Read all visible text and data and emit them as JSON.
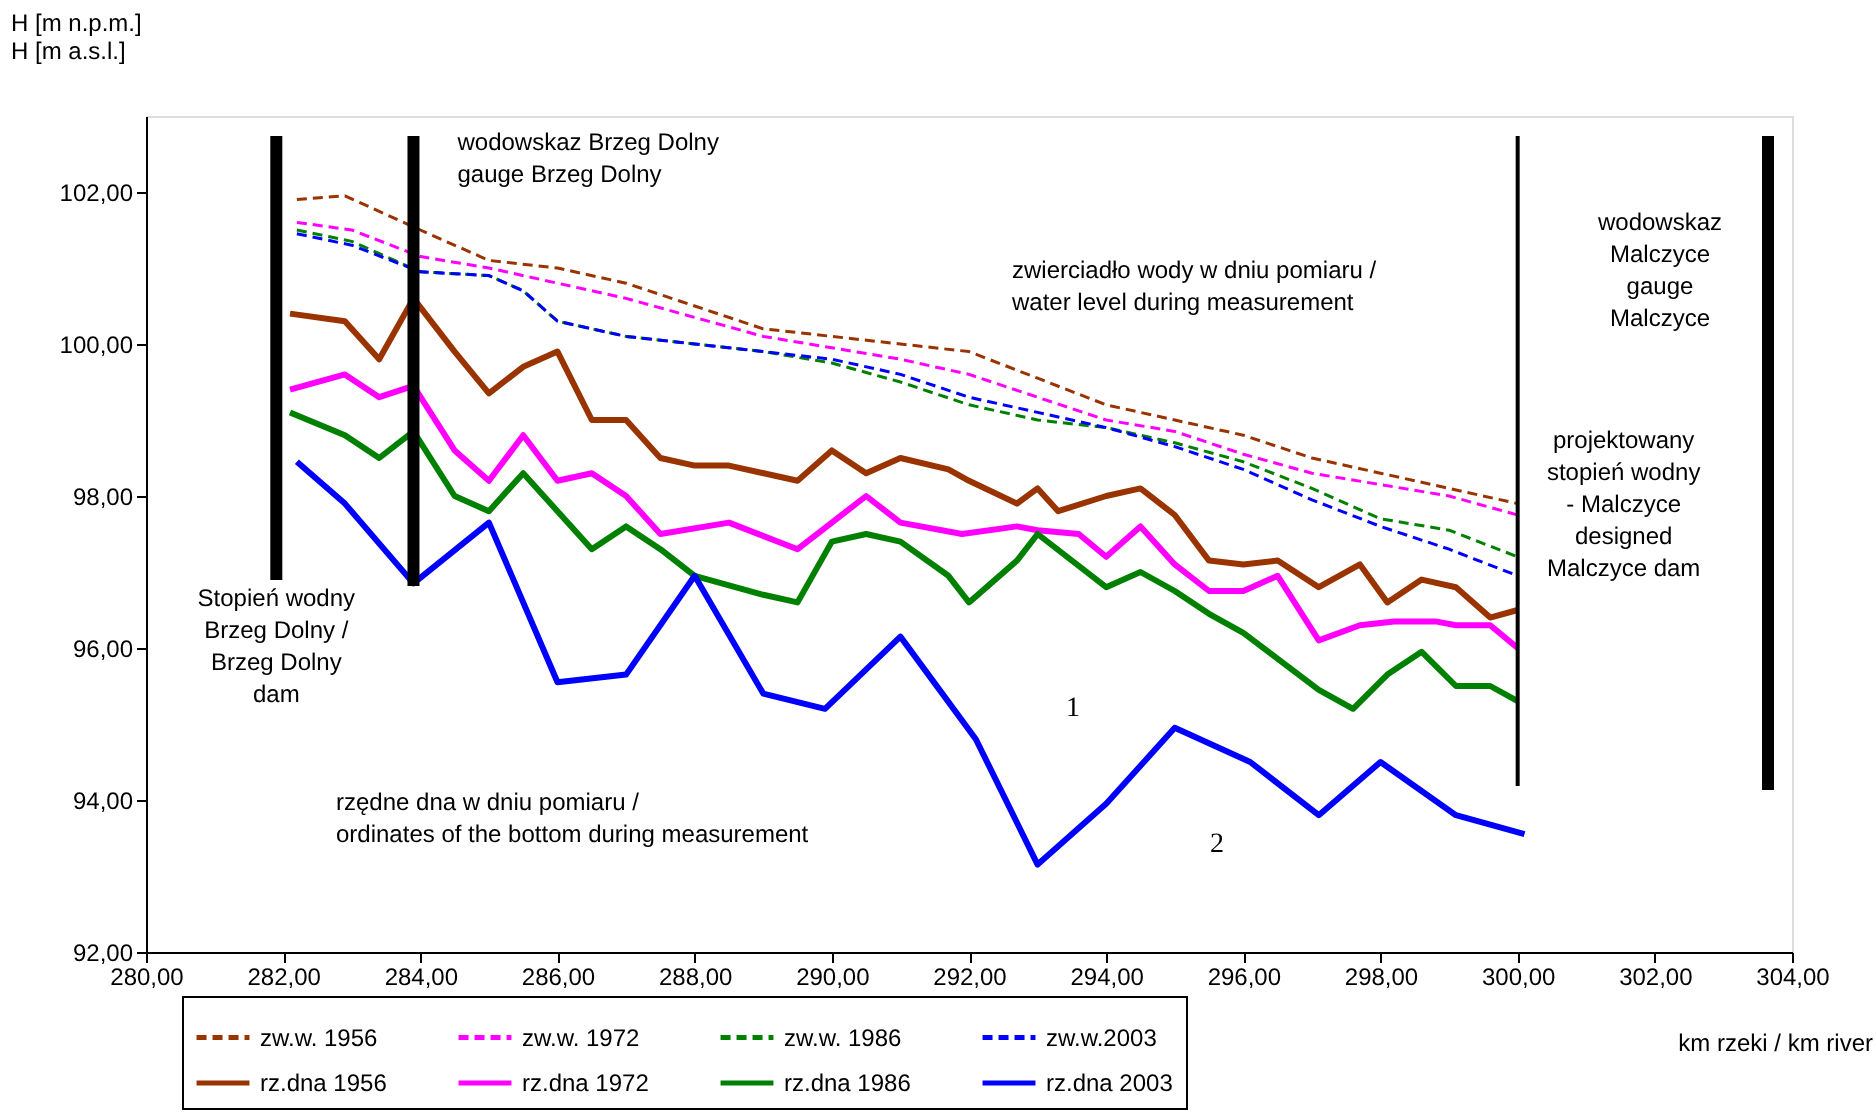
{
  "chart_data": {
    "type": "line",
    "xlabel": "km rzeki / km river",
    "ylabel": "H [m n.p.m.]\nH [m a.s.l.]",
    "xlim": [
      280,
      304
    ],
    "xticks": [
      {
        "value": 280,
        "label": "280,00"
      },
      {
        "value": 282,
        "label": "282,00"
      },
      {
        "value": 284,
        "label": "284,00"
      },
      {
        "value": 286,
        "label": "286,00"
      },
      {
        "value": 288,
        "label": "288,00"
      },
      {
        "value": 290,
        "label": "290,00"
      },
      {
        "value": 292,
        "label": "292,00"
      },
      {
        "value": 294,
        "label": "294,00"
      },
      {
        "value": 296,
        "label": "296,00"
      },
      {
        "value": 298,
        "label": "298,00"
      },
      {
        "value": 300,
        "label": "300,00"
      },
      {
        "value": 302,
        "label": "302,00"
      },
      {
        "value": 304,
        "label": "304,00"
      }
    ],
    "ylim": [
      92,
      103
    ],
    "yticks": [
      {
        "value": 92,
        "label": "92,00"
      },
      {
        "value": 94,
        "label": "94,00"
      },
      {
        "value": 96,
        "label": "96,00"
      },
      {
        "value": 98,
        "label": "98,00"
      },
      {
        "value": 100,
        "label": "100,00"
      },
      {
        "value": 102,
        "label": "102,00"
      }
    ],
    "grid": false,
    "legend": "bottom",
    "series": [
      {
        "name": "zw.w. 1956",
        "color": "#993300",
        "line_style": "dashed",
        "x": [
          282.2,
          282.9,
          284,
          285,
          286,
          287,
          288,
          289,
          290,
          291,
          292,
          293,
          294,
          295,
          296,
          297,
          298,
          299,
          300
        ],
        "values": [
          101.9,
          101.95,
          101.5,
          101.1,
          101.0,
          100.8,
          100.5,
          100.2,
          100.1,
          100.0,
          99.9,
          99.55,
          99.2,
          99.0,
          98.8,
          98.5,
          98.3,
          98.1,
          97.9
        ]
      },
      {
        "name": "zw.w. 1972",
        "color": "#ff00ff",
        "line_style": "dashed",
        "x": [
          282.2,
          283,
          284,
          285,
          286,
          287,
          288,
          289,
          290,
          291,
          292,
          293,
          294,
          295,
          296,
          297,
          298,
          299,
          300
        ],
        "values": [
          101.6,
          101.5,
          101.15,
          101.0,
          100.8,
          100.6,
          100.35,
          100.1,
          99.95,
          99.8,
          99.6,
          99.3,
          99.0,
          98.85,
          98.55,
          98.3,
          98.15,
          98.0,
          97.75
        ]
      },
      {
        "name": "zw.w. 1986",
        "color": "#008000",
        "line_style": "dashed",
        "x": [
          282.2,
          283,
          284,
          285,
          285.5,
          286,
          287,
          288,
          289,
          290,
          291,
          292,
          293,
          294,
          295,
          296,
          297,
          298,
          299,
          300
        ],
        "values": [
          101.5,
          101.35,
          100.95,
          100.9,
          100.7,
          100.3,
          100.1,
          100.0,
          99.9,
          99.75,
          99.5,
          99.2,
          99.0,
          98.9,
          98.7,
          98.45,
          98.1,
          97.7,
          97.55,
          97.2
        ]
      },
      {
        "name": "zw.w.2003",
        "color": "#0000ff",
        "line_style": "dashed",
        "x": [
          282.2,
          283,
          284,
          285,
          285.5,
          286,
          287,
          288,
          289,
          290,
          291,
          292,
          293,
          294,
          295,
          296,
          297,
          298,
          299,
          300
        ],
        "values": [
          101.45,
          101.3,
          100.95,
          100.9,
          100.7,
          100.3,
          100.1,
          100.0,
          99.9,
          99.8,
          99.6,
          99.3,
          99.1,
          98.9,
          98.65,
          98.35,
          97.95,
          97.6,
          97.3,
          96.95
        ]
      },
      {
        "name": "rz.dna 1956",
        "color": "#993300",
        "line_style": "solid",
        "x": [
          282.1,
          282.9,
          283.4,
          283.9,
          284.5,
          285,
          285.5,
          286,
          286.5,
          287,
          287.5,
          288,
          288.5,
          289.5,
          290,
          290.5,
          291,
          291.7,
          292,
          292.7,
          293,
          293.3,
          294,
          294.5,
          295,
          295.5,
          296,
          296.5,
          297.1,
          297.7,
          298.1,
          298.6,
          299.1,
          299.6,
          300
        ],
        "values": [
          100.4,
          100.3,
          99.8,
          100.6,
          99.9,
          99.35,
          99.7,
          99.9,
          99.0,
          99.0,
          98.5,
          98.4,
          98.4,
          98.2,
          98.6,
          98.3,
          98.5,
          98.35,
          98.2,
          97.9,
          98.1,
          97.8,
          98.0,
          98.1,
          97.75,
          97.15,
          97.1,
          97.15,
          96.8,
          97.1,
          96.6,
          96.9,
          96.8,
          96.4,
          96.5
        ]
      },
      {
        "name": "rz.dna 1972",
        "color": "#ff00ff",
        "line_style": "solid",
        "x": [
          282.1,
          282.9,
          283.4,
          283.9,
          284.5,
          285,
          285.5,
          286,
          286.5,
          287,
          287.5,
          288.5,
          289.5,
          290,
          290.5,
          291,
          291.9,
          292.7,
          293,
          293.6,
          294,
          294.5,
          295,
          295.5,
          296,
          296.5,
          297.1,
          297.7,
          298.2,
          298.8,
          299.1,
          299.6,
          300
        ],
        "values": [
          99.4,
          99.6,
          99.3,
          99.45,
          98.6,
          98.2,
          98.8,
          98.2,
          98.3,
          98.0,
          97.5,
          97.65,
          97.3,
          97.65,
          98.0,
          97.65,
          97.5,
          97.6,
          97.55,
          97.5,
          97.2,
          97.6,
          97.1,
          96.75,
          96.75,
          96.95,
          96.1,
          96.3,
          96.35,
          96.35,
          96.3,
          96.3,
          96.0
        ]
      },
      {
        "name": "rz.dna 1986",
        "color": "#008000",
        "line_style": "solid",
        "x": [
          282.1,
          282.9,
          283.4,
          283.9,
          284.5,
          285,
          285.5,
          286,
          286.5,
          287,
          287.5,
          288,
          289,
          289.5,
          290,
          290.5,
          291,
          291.7,
          292,
          292.7,
          293,
          294,
          294.5,
          295,
          295.5,
          296,
          297.1,
          297.6,
          298.1,
          298.6,
          299.1,
          299.6,
          300
        ],
        "values": [
          99.1,
          98.8,
          98.5,
          98.85,
          98.0,
          97.8,
          98.3,
          97.8,
          97.3,
          97.6,
          97.3,
          96.95,
          96.7,
          96.6,
          97.4,
          97.5,
          97.4,
          96.95,
          96.6,
          97.15,
          97.5,
          96.8,
          97.0,
          96.75,
          96.45,
          96.2,
          95.45,
          95.2,
          95.65,
          95.95,
          95.5,
          95.5,
          95.3
        ]
      },
      {
        "name": "rz.dna 2003",
        "color": "#0000ff",
        "line_style": "solid",
        "x": [
          282.2,
          282.9,
          283.9,
          285,
          286,
          287,
          288,
          289,
          289.9,
          291,
          292.1,
          293,
          294,
          295,
          296.1,
          297.1,
          298,
          299.1,
          300.1
        ],
        "values": [
          98.45,
          97.9,
          96.85,
          97.65,
          95.55,
          95.65,
          96.95,
          95.4,
          95.2,
          96.15,
          94.8,
          93.15,
          93.95,
          94.95,
          94.5,
          93.8,
          94.5,
          93.8,
          93.55
        ]
      }
    ],
    "ref_lines": [
      {
        "axis": "x",
        "value": 281.9,
        "label": "Stopień wodny\nBrzeg Dolny /\nBrzeg Dolny\ndam",
        "color": "#000000",
        "line_style": "solid"
      },
      {
        "axis": "x",
        "value": 283.9,
        "label": "wodowskaz Brzeg Dolny\ngauge Brzeg Dolny",
        "color": "#000000",
        "line_style": "solid"
      },
      {
        "axis": "x",
        "value": 300.0,
        "label": "projektowany\nstopień wodny\n- Malczyce\ndesigned\nMalczyce dam",
        "color": "#000000",
        "line_style": "solid"
      },
      {
        "axis": "x",
        "value": 303.65,
        "label": "wodowskaz\nMalczyce\ngauge\nMalczyce",
        "color": "#000000",
        "line_style": "solid"
      }
    ],
    "annotations": [
      "zwierciadło wody w dniu pomiaru /\nwater level during measurement",
      "rzędne dna w dniu pomiaru /\nordinates of the bottom during measurement",
      "1",
      "2"
    ]
  }
}
